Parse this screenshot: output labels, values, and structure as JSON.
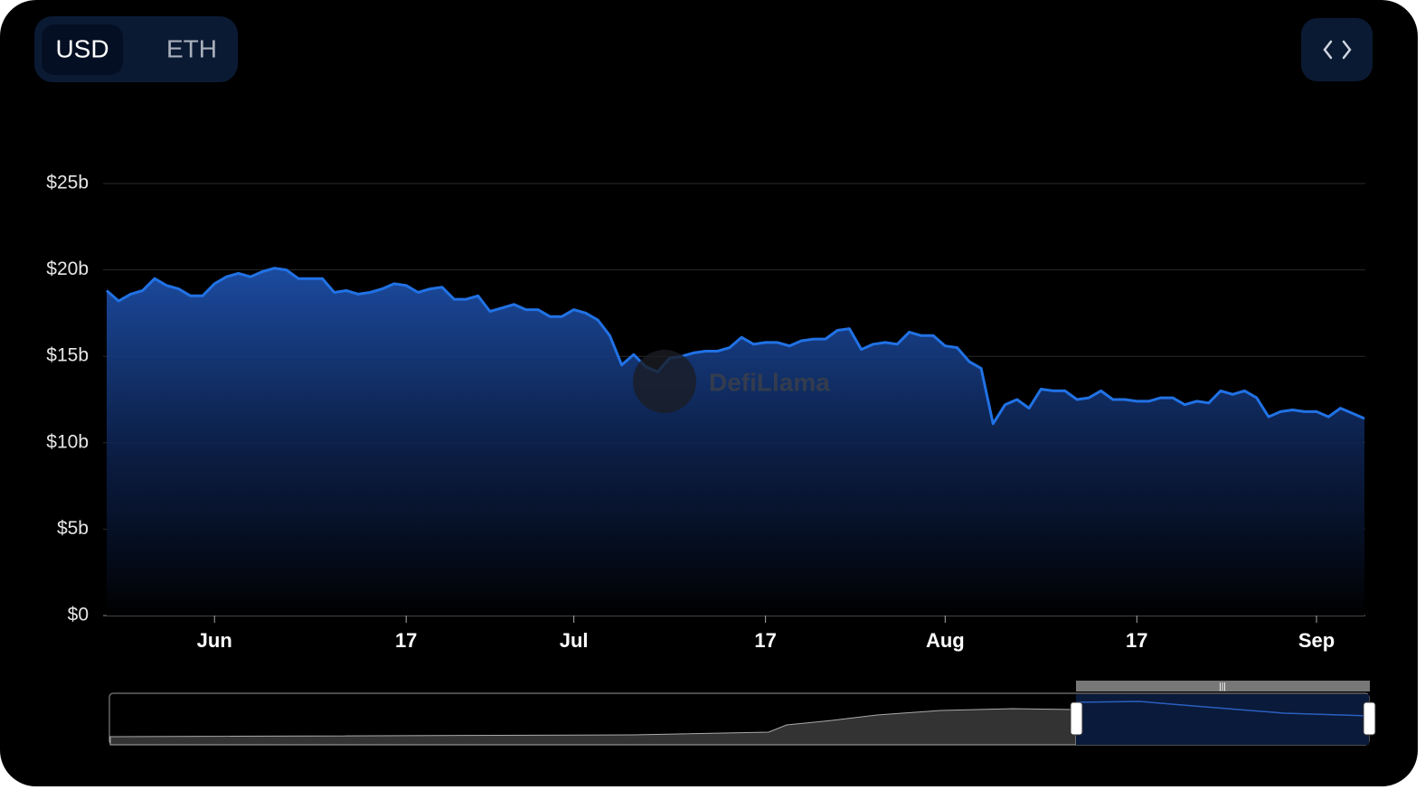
{
  "currency_toggle": [
    "USD",
    "ETH"
  ],
  "watermark": "DefiLlama",
  "chart_data": {
    "type": "area",
    "color": "#2172e5",
    "categories": [
      "May 23",
      "May 24",
      "May 25",
      "May 26",
      "May 27",
      "May 28",
      "May 29",
      "May 30",
      "May 31",
      "Jun 1",
      "Jun 2",
      "Jun 3",
      "Jun 4",
      "Jun 5",
      "Jun 6",
      "Jun 7",
      "Jun 8",
      "Jun 9",
      "Jun 10",
      "Jun 11",
      "Jun 12",
      "Jun 13",
      "Jun 14",
      "Jun 15",
      "Jun 16",
      "Jun 17",
      "Jun 18",
      "Jun 19",
      "Jun 20",
      "Jun 21",
      "Jun 22",
      "Jun 23",
      "Jun 24",
      "Jun 25",
      "Jun 26",
      "Jun 27",
      "Jun 28",
      "Jun 29",
      "Jun 30",
      "Jul 1",
      "Jul 2",
      "Jul 3",
      "Jul 4",
      "Jul 5",
      "Jul 6",
      "Jul 7",
      "Jul 8",
      "Jul 9",
      "Jul 10",
      "Jul 11",
      "Jul 12",
      "Jul 13",
      "Jul 14",
      "Jul 15",
      "Jul 16",
      "Jul 17",
      "Jul 18",
      "Jul 19",
      "Jul 20",
      "Jul 21",
      "Jul 22",
      "Jul 23",
      "Jul 24",
      "Jul 25",
      "Jul 26",
      "Jul 27",
      "Jul 28",
      "Jul 29",
      "Jul 30",
      "Jul 31",
      "Aug 1",
      "Aug 2",
      "Aug 3",
      "Aug 4",
      "Aug 5",
      "Aug 6",
      "Aug 7",
      "Aug 8",
      "Aug 9",
      "Aug 10",
      "Aug 11",
      "Aug 12",
      "Aug 13",
      "Aug 14",
      "Aug 15",
      "Aug 16",
      "Aug 17",
      "Aug 18",
      "Aug 19",
      "Aug 20",
      "Aug 21",
      "Aug 22",
      "Aug 23",
      "Aug 24",
      "Aug 25",
      "Aug 26",
      "Aug 27",
      "Aug 28",
      "Aug 29",
      "Aug 30",
      "Aug 31",
      "Sep 1",
      "Sep 2",
      "Sep 3",
      "Sep 4",
      "Sep 5"
    ],
    "values": [
      18.8,
      18.2,
      18.6,
      18.8,
      19.5,
      19.1,
      18.9,
      18.5,
      18.5,
      19.2,
      19.6,
      19.8,
      19.6,
      19.9,
      20.1,
      20.0,
      19.5,
      19.5,
      19.5,
      18.7,
      18.8,
      18.6,
      18.7,
      18.9,
      19.2,
      19.1,
      18.7,
      18.9,
      19.0,
      18.3,
      18.3,
      18.5,
      17.6,
      17.8,
      18.0,
      17.7,
      17.7,
      17.3,
      17.3,
      17.7,
      17.5,
      17.1,
      16.2,
      14.5,
      15.1,
      14.4,
      14.1,
      14.9,
      15.0,
      15.2,
      15.3,
      15.3,
      15.5,
      16.1,
      15.7,
      15.8,
      15.8,
      15.6,
      15.9,
      16.0,
      16.0,
      16.5,
      16.6,
      15.4,
      15.7,
      15.8,
      15.7,
      16.4,
      16.2,
      16.2,
      15.6,
      15.5,
      14.7,
      14.3,
      11.1,
      12.2,
      12.5,
      12.0,
      13.1,
      13.0,
      13.0,
      12.5,
      12.6,
      13.0,
      12.5,
      12.5,
      12.4,
      12.4,
      12.6,
      12.6,
      12.2,
      12.4,
      12.3,
      13.0,
      12.8,
      13.0,
      12.6,
      11.5,
      11.8,
      11.9,
      11.8,
      11.8,
      11.5,
      12.0,
      11.7,
      11.4
    ],
    "ylim": [
      0,
      25
    ],
    "yticks": [
      {
        "value": 0,
        "label": "$0"
      },
      {
        "value": 5,
        "label": "$5b"
      },
      {
        "value": 10,
        "label": "$10b"
      },
      {
        "value": 15,
        "label": "$15b"
      },
      {
        "value": 20,
        "label": "$20b"
      },
      {
        "value": 25,
        "label": "$25b"
      }
    ],
    "xticks": [
      {
        "value": "Jun 1",
        "label": "Jun"
      },
      {
        "value": "Jun 17",
        "label": "17"
      },
      {
        "value": "Jul 1",
        "label": "Jul"
      },
      {
        "value": "Jul 17",
        "label": "17"
      },
      {
        "value": "Aug 1",
        "label": "Aug"
      },
      {
        "value": "Aug 17",
        "label": "17"
      },
      {
        "value": "Sep 1",
        "label": "Sep"
      }
    ],
    "grid": true
  }
}
